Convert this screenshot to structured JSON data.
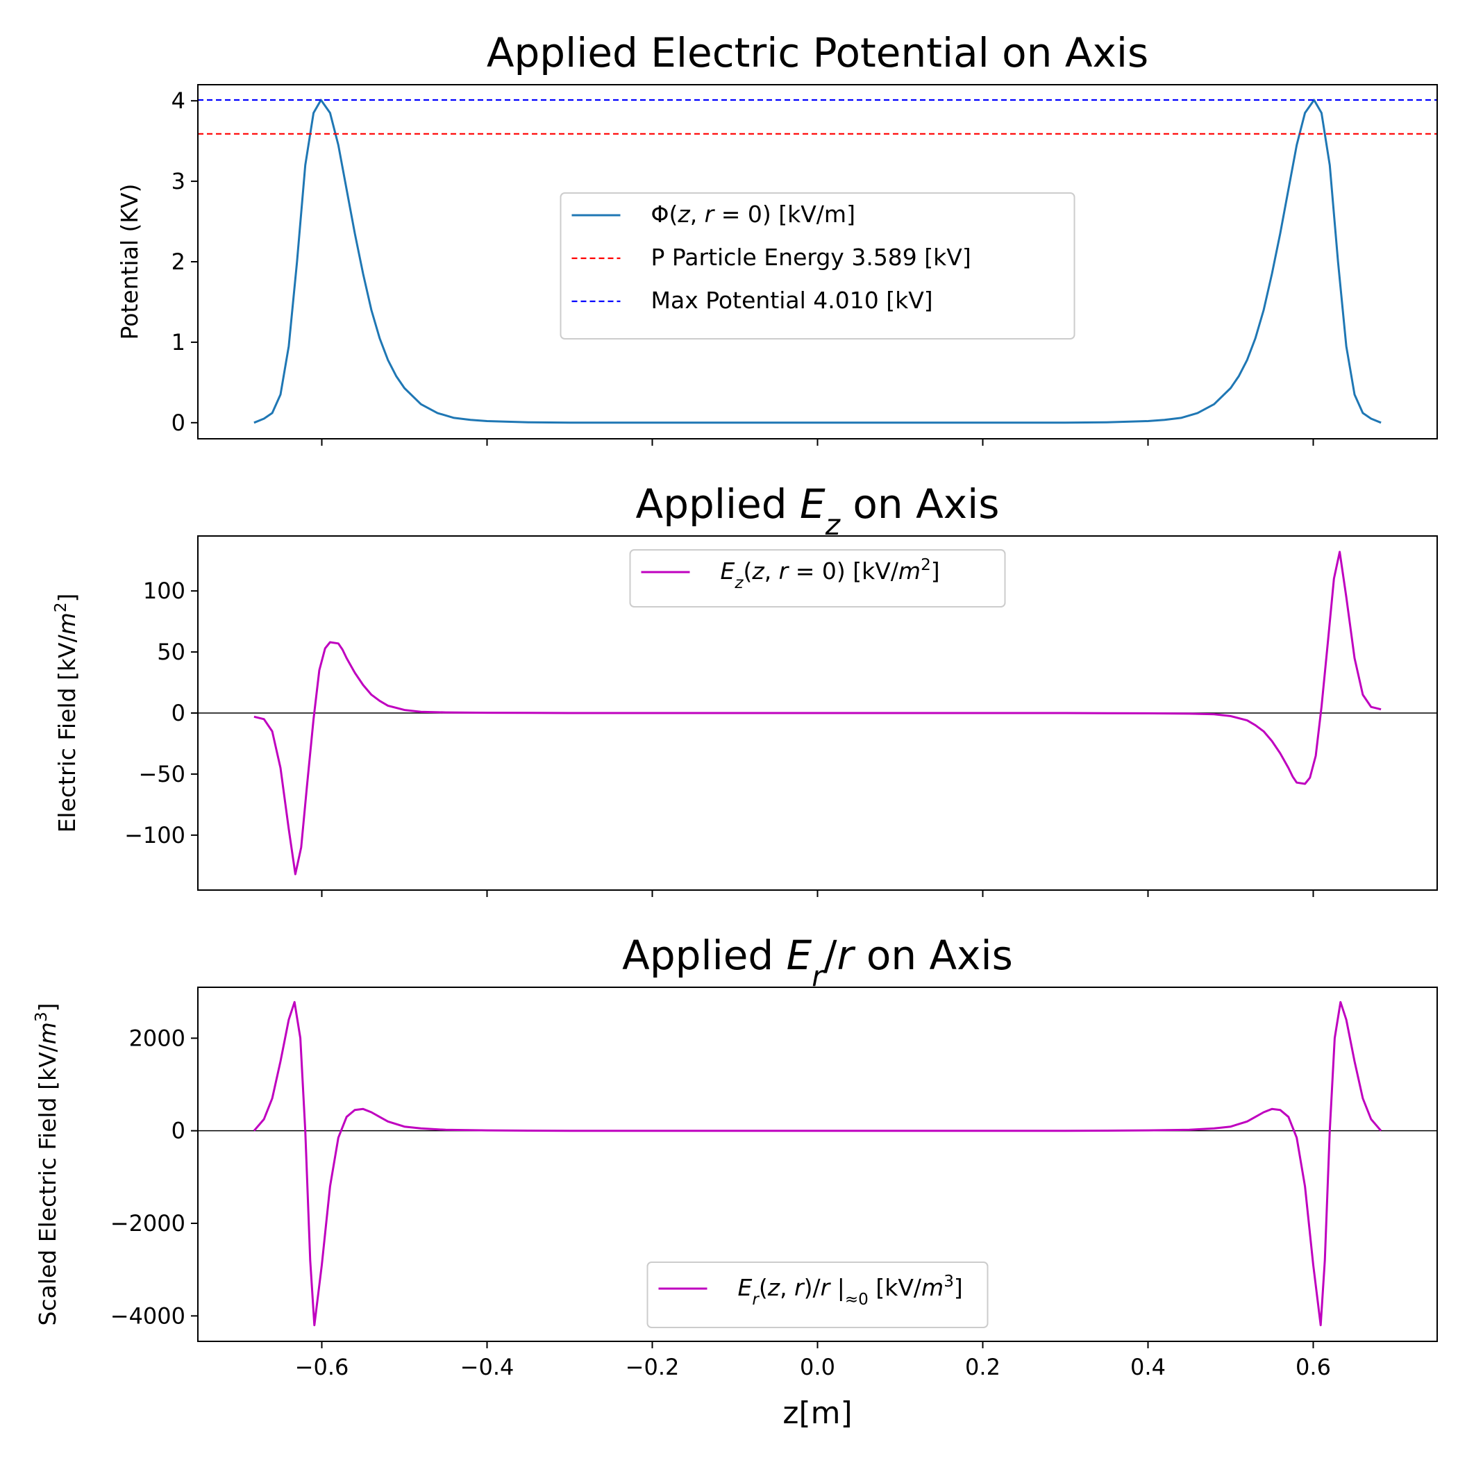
{
  "figure": {
    "xlabel": "z[m]",
    "xlim": [
      -0.75,
      0.75
    ],
    "xticks": [
      -0.6,
      -0.4,
      -0.2,
      0.0,
      0.2,
      0.4,
      0.6
    ],
    "xtick_labels": [
      "−0.6",
      "−0.4",
      "−0.2",
      "0.0",
      "0.2",
      "0.4",
      "0.6"
    ]
  },
  "chart_data": [
    {
      "type": "line",
      "title": "Applied Electric Potential on Axis",
      "ylabel": "Potential (KV)",
      "ylim": [
        -0.2,
        4.2
      ],
      "yticks": [
        0,
        1,
        2,
        3,
        4
      ],
      "ytick_labels": [
        "0",
        "1",
        "2",
        "3",
        "4"
      ],
      "legend_position": "center",
      "series": [
        {
          "name": "Φ(z, r = 0) [kV/m]",
          "color": "#1f77b4",
          "style": "solid",
          "x": [
            -0.682,
            -0.67,
            -0.66,
            -0.65,
            -0.64,
            -0.63,
            -0.62,
            -0.61,
            -0.601,
            -0.59,
            -0.58,
            -0.57,
            -0.56,
            -0.55,
            -0.54,
            -0.53,
            -0.52,
            -0.51,
            -0.5,
            -0.48,
            -0.46,
            -0.44,
            -0.42,
            -0.4,
            -0.35,
            -0.3,
            0.0,
            0.3,
            0.35,
            0.4,
            0.42,
            0.44,
            0.46,
            0.48,
            0.5,
            0.51,
            0.52,
            0.53,
            0.54,
            0.55,
            0.56,
            0.57,
            0.58,
            0.59,
            0.601,
            0.61,
            0.62,
            0.63,
            0.64,
            0.65,
            0.66,
            0.67,
            0.682
          ],
          "y": [
            0.0,
            0.05,
            0.12,
            0.35,
            0.95,
            2.0,
            3.2,
            3.85,
            4.01,
            3.85,
            3.45,
            2.9,
            2.35,
            1.85,
            1.4,
            1.05,
            0.78,
            0.58,
            0.43,
            0.23,
            0.12,
            0.06,
            0.035,
            0.02,
            0.005,
            0.001,
            0.0,
            0.001,
            0.005,
            0.02,
            0.035,
            0.06,
            0.12,
            0.23,
            0.43,
            0.58,
            0.78,
            1.05,
            1.4,
            1.85,
            2.35,
            2.9,
            3.45,
            3.85,
            4.01,
            3.85,
            3.2,
            2.0,
            0.95,
            0.35,
            0.12,
            0.05,
            0.0
          ]
        },
        {
          "name": "P Particle Energy 3.589 [kV]",
          "color": "#ff0000",
          "style": "dashed",
          "hline": 3.589
        },
        {
          "name": "Max Potential 4.010 [kV]",
          "color": "#0000ff",
          "style": "dashed",
          "hline": 4.01
        }
      ]
    },
    {
      "type": "line",
      "title": "Applied E_z on Axis",
      "ylabel": "Electric Field [kV/m²]",
      "ylim": [
        -145,
        145
      ],
      "yticks": [
        -100,
        -50,
        0,
        50,
        100
      ],
      "ytick_labels": [
        "−100",
        "−50",
        "0",
        "50",
        "100"
      ],
      "zero_line": true,
      "legend_position": "upper center",
      "series": [
        {
          "name": "E_z(z, r = 0) [kV/m²]",
          "color": "#bf00bf",
          "style": "solid",
          "x": [
            -0.682,
            -0.67,
            -0.66,
            -0.65,
            -0.64,
            -0.632,
            -0.625,
            -0.618,
            -0.61,
            -0.603,
            -0.596,
            -0.59,
            -0.58,
            -0.575,
            -0.57,
            -0.56,
            -0.55,
            -0.54,
            -0.53,
            -0.52,
            -0.5,
            -0.48,
            -0.45,
            -0.4,
            -0.35,
            -0.3,
            0.0,
            0.3,
            0.35,
            0.4,
            0.45,
            0.48,
            0.5,
            0.52,
            0.53,
            0.54,
            0.55,
            0.56,
            0.57,
            0.575,
            0.58,
            0.59,
            0.596,
            0.603,
            0.61,
            0.618,
            0.625,
            0.632,
            0.64,
            0.65,
            0.66,
            0.67,
            0.682
          ],
          "y": [
            -3,
            -5,
            -15,
            -45,
            -95,
            -132,
            -110,
            -60,
            -5,
            35,
            53,
            58,
            57,
            52,
            45,
            33,
            23,
            15,
            10,
            6,
            2.5,
            1,
            0.5,
            0.2,
            0.1,
            0,
            0,
            0,
            -0.1,
            -0.2,
            -0.5,
            -1,
            -2.5,
            -6,
            -10,
            -15,
            -23,
            -33,
            -45,
            -52,
            -57,
            -58,
            -53,
            -35,
            5,
            60,
            110,
            132,
            95,
            45,
            15,
            5,
            3
          ]
        }
      ]
    },
    {
      "type": "line",
      "title": "Applied E_r/r on Axis",
      "ylabel": "Scaled Electric Field [kV/m³]",
      "ylim": [
        -4550,
        3100
      ],
      "yticks": [
        -4000,
        -2000,
        0,
        2000
      ],
      "ytick_labels": [
        "−4000",
        "−2000",
        "0",
        "2000"
      ],
      "zero_line": true,
      "legend_position": "lower center",
      "series": [
        {
          "name": "E_r(z, r)/r |≈0 [kV/m³]",
          "color": "#bf00bf",
          "style": "solid",
          "x": [
            -0.682,
            -0.67,
            -0.66,
            -0.65,
            -0.64,
            -0.633,
            -0.626,
            -0.62,
            -0.614,
            -0.609,
            -0.6,
            -0.59,
            -0.58,
            -0.57,
            -0.56,
            -0.55,
            -0.54,
            -0.53,
            -0.52,
            -0.5,
            -0.48,
            -0.45,
            -0.4,
            -0.35,
            -0.3,
            0.0,
            0.3,
            0.35,
            0.4,
            0.45,
            0.48,
            0.5,
            0.52,
            0.53,
            0.54,
            0.55,
            0.56,
            0.57,
            0.58,
            0.59,
            0.6,
            0.609,
            0.614,
            0.62,
            0.626,
            0.633,
            0.64,
            0.65,
            0.66,
            0.67,
            0.682
          ],
          "y": [
            0,
            250,
            700,
            1500,
            2400,
            2780,
            2000,
            0,
            -2800,
            -4200,
            -2900,
            -1200,
            -150,
            300,
            450,
            470,
            400,
            300,
            200,
            90,
            50,
            20,
            8,
            3,
            0,
            0,
            0,
            3,
            8,
            20,
            50,
            90,
            200,
            300,
            400,
            470,
            450,
            300,
            -150,
            -1200,
            -2900,
            -4200,
            -2800,
            0,
            2000,
            2780,
            2400,
            1500,
            700,
            250,
            0
          ]
        }
      ]
    }
  ]
}
